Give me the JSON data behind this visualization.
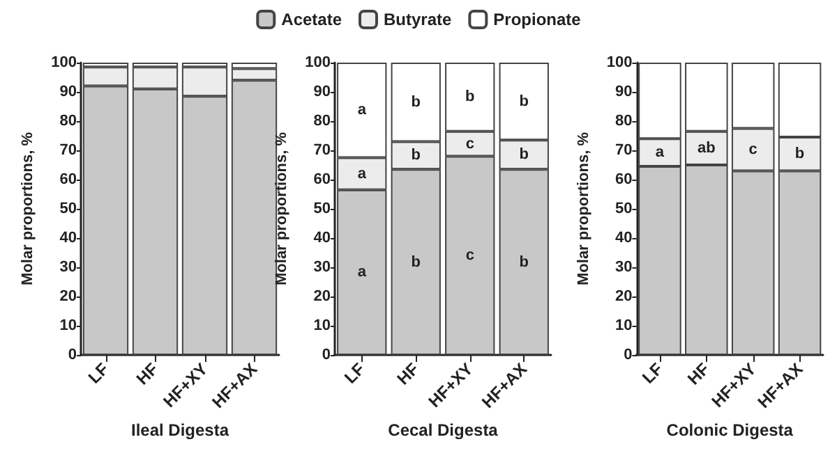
{
  "chart_data": [
    {
      "type": "bar",
      "stacked": true,
      "xlabel": "Ileal Digesta",
      "ylabel": "Molar proportions, %",
      "categories": [
        "LF",
        "HF",
        "HF+XY",
        "HF+AX"
      ],
      "ylim": [
        0,
        100
      ],
      "yticks": [
        0,
        10,
        20,
        30,
        40,
        50,
        60,
        70,
        80,
        90,
        100
      ],
      "grid": false,
      "series": [
        {
          "color": "#c8c8c8",
          "values": [
            92,
            91,
            88.5,
            94
          ]
        },
        {
          "color": "#ececec",
          "values": [
            6.5,
            7.5,
            10,
            4
          ]
        },
        {
          "color": "#ffffff",
          "values": [
            1.5,
            1.5,
            1.5,
            2
          ]
        }
      ]
    },
    {
      "type": "bar",
      "stacked": true,
      "xlabel": "Cecal Digesta",
      "ylabel": "Molar proportions, %",
      "categories": [
        "LF",
        "HF",
        "HF+XY",
        "HF+AX"
      ],
      "ylim": [
        0,
        100
      ],
      "yticks": [
        0,
        10,
        20,
        30,
        40,
        50,
        60,
        70,
        80,
        90,
        100
      ],
      "grid": false,
      "legend": "top",
      "series": [
        {
          "name": "Acetate",
          "color": "#c8c8c8",
          "values": [
            56.5,
            63.5,
            68,
            63.5
          ],
          "value_labels": [
            "a",
            "b",
            "c",
            "b"
          ]
        },
        {
          "name": "Butyrate",
          "color": "#ececec",
          "values": [
            11,
            9.5,
            8.5,
            10
          ],
          "value_labels": [
            "a",
            "b",
            "c",
            "b"
          ]
        },
        {
          "name": "Propionate",
          "color": "#ffffff",
          "values": [
            32.5,
            27,
            23.5,
            26.5
          ],
          "value_labels": [
            "a",
            "b",
            "b",
            "b"
          ]
        }
      ]
    },
    {
      "type": "bar",
      "stacked": true,
      "xlabel": "Colonic Digesta",
      "ylabel": "Molar proportions, %",
      "categories": [
        "LF",
        "HF",
        "HF+XY",
        "HF+AX"
      ],
      "ylim": [
        0,
        100
      ],
      "yticks": [
        0,
        10,
        20,
        30,
        40,
        50,
        60,
        70,
        80,
        90,
        100
      ],
      "grid": false,
      "series": [
        {
          "color": "#c8c8c8",
          "values": [
            64.5,
            65,
            63,
            63
          ]
        },
        {
          "color": "#ececec",
          "values": [
            9.5,
            11.5,
            14.5,
            11.5
          ],
          "value_labels": [
            "a",
            "ab",
            "c",
            "b"
          ]
        },
        {
          "color": "#ffffff",
          "values": [
            26,
            23.5,
            22.5,
            25.5
          ]
        }
      ]
    }
  ]
}
